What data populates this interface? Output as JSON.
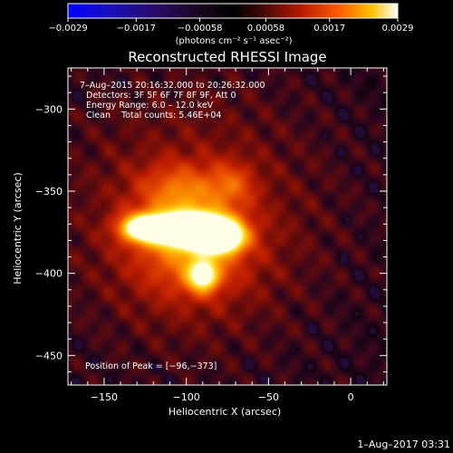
{
  "chart_data": {
    "type": "heatmap",
    "title": "Reconstructed RHESSI Image",
    "xlabel": "Heliocentric X (arcsec)",
    "ylabel": "Heliocentric Y (arcsec)",
    "xlim": [
      -172,
      22
    ],
    "ylim": [
      -468,
      -275
    ],
    "xticks": [
      -150,
      -100,
      -50,
      0
    ],
    "xtick_labels": [
      "−150",
      "−100",
      "−50",
      "0"
    ],
    "yticks": [
      -450,
      -400,
      -350,
      -300
    ],
    "ytick_labels": [
      "−450",
      "−400",
      "−350",
      "−300"
    ],
    "colorbar": {
      "range": [
        -0.0029,
        0.0029
      ],
      "ticks": [
        -0.0029,
        -0.0017,
        -0.00058,
        0.00058,
        0.0017,
        0.0029
      ],
      "tick_labels": [
        "−0.0029",
        "−0.0017",
        "−0.00058",
        "0.00058",
        "0.0017",
        "0.0029"
      ],
      "units_label": "(photons cm⁻² s⁻¹ asec⁻²)"
    },
    "annotations": [
      "7–Aug–2015 20:16:32.000 to 20:26:32.000",
      "Detectors: 3F 5F 6F 7F 8F 9F, Att 0",
      "Energy Range: 6.0 – 12.0 keV",
      "Clean    Total counts: 5.46E+04"
    ],
    "peak_label": "Position of Peak = [−96,−373]",
    "peak": [
      -96,
      -373
    ],
    "sources": [
      {
        "x": -98,
        "y": -373,
        "sx": 17,
        "sy": 7,
        "amp": 1.0
      },
      {
        "x": -128,
        "y": -372,
        "sx": 10,
        "sy": 6,
        "amp": 0.72
      },
      {
        "x": -78,
        "y": -378,
        "sx": 10,
        "sy": 7,
        "amp": 0.72
      },
      {
        "x": -90,
        "y": -402,
        "sx": 7,
        "sy": 7,
        "amp": 0.62
      },
      {
        "x": -98,
        "y": -385,
        "sx": 26,
        "sy": 22,
        "amp": 0.45
      },
      {
        "x": -105,
        "y": -348,
        "sx": 18,
        "sy": 12,
        "amp": 0.32
      },
      {
        "x": -72,
        "y": -345,
        "sx": 10,
        "sy": 10,
        "amp": 0.28
      },
      {
        "x": -95,
        "y": -365,
        "sx": 58,
        "sy": 58,
        "amp": 0.28
      }
    ],
    "background_level": 0.18
  },
  "footer_timestamp": "1–Aug–2017 03:31"
}
